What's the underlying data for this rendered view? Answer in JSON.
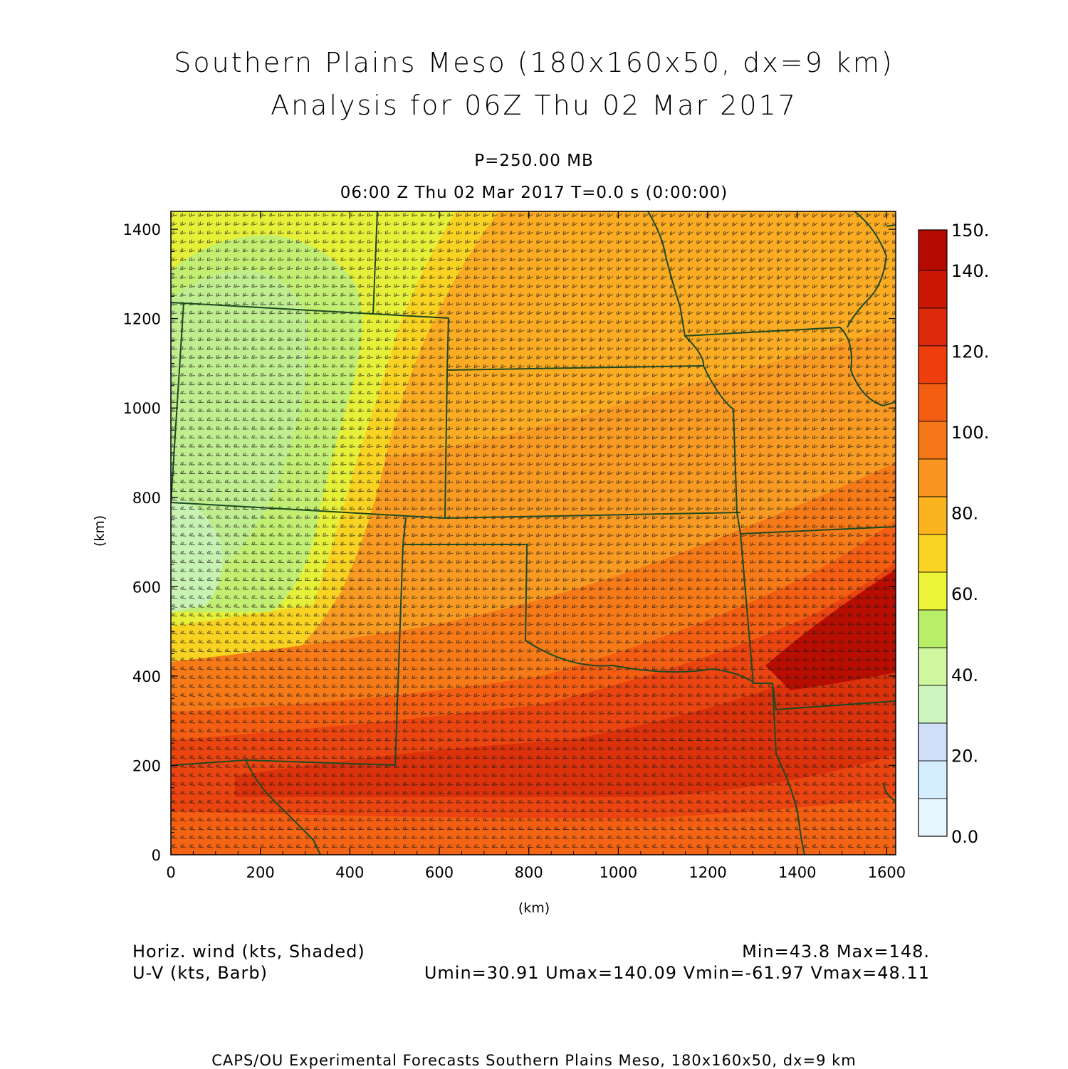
{
  "title_line1": "Southern Plains Meso (180x160x50, dx=9 km)",
  "title_line2": "Analysis for 06Z Thu 02 Mar 2017",
  "level_label": "P=250.00 MB",
  "time_label": "06:00 Z Thu 02 Mar 2017    T=0.0 s (0:00:00)",
  "x_axis": {
    "label": "(km)",
    "range": [
      0,
      1620
    ],
    "ticks": [
      0,
      200,
      400,
      600,
      800,
      1000,
      1200,
      1400,
      1600
    ]
  },
  "y_axis": {
    "label": "(km)",
    "range": [
      0,
      1440
    ],
    "ticks": [
      0,
      200,
      400,
      600,
      800,
      1000,
      1200,
      1400
    ]
  },
  "colorbar": {
    "range": [
      0,
      150
    ],
    "tick_labels": [
      "0.0",
      "20.",
      "40.",
      "60.",
      "80.",
      "100.",
      "120.",
      "140.",
      "150."
    ],
    "tick_values": [
      0,
      20,
      40,
      60,
      80,
      100,
      120,
      140,
      150
    ],
    "colors": [
      "#e8f7ff",
      "#d4eeff",
      "#d0e0f8",
      "#ccf5c0",
      "#cff7a0",
      "#b9ee68",
      "#ecf438",
      "#f9d322",
      "#fbb420",
      "#f99520",
      "#f67718",
      "#f45e12",
      "#ee3e0e",
      "#dd2a0a",
      "#ca1804",
      "#b40a00"
    ]
  },
  "field": {
    "name": "Horiz. wind (kts, Shaded)",
    "min": 43.8,
    "max": 148
  },
  "legend": {
    "shaded": "Horiz. wind (kts, Shaded)",
    "barbs": "U-V (kts, Barb)",
    "minmax": "Min=43.8 Max=148.",
    "uv_stats": "Umin=30.91 Umax=140.09 Vmin=-61.97 Vmax=48.11"
  },
  "footer": "CAPS/OU Experimental Forecasts  Southern Plains Meso, 180x160x50, dx=9 km",
  "colors": {
    "boundary": "#1d4a22",
    "barb": "#1a1a1a",
    "frame": "#000000"
  }
}
